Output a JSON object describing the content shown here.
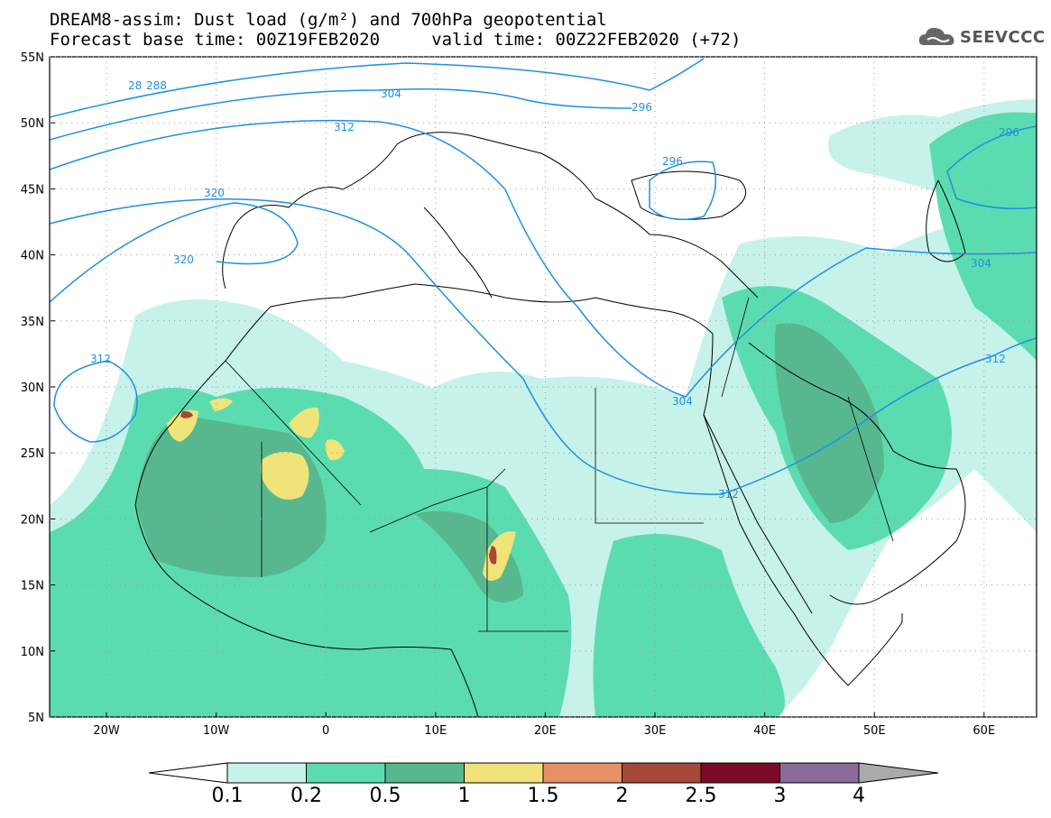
{
  "header": {
    "title_line1": "DREAM8-assim: Dust load (g/m²) and 700hPa geopotential",
    "title_line2": "Forecast base time: 00Z19FEB2020     valid time: 00Z22FEB2020 (+72)",
    "logo_text": "SEEVCCC"
  },
  "map": {
    "lat_labels": [
      "55N",
      "50N",
      "45N",
      "40N",
      "35N",
      "30N",
      "25N",
      "20N",
      "15N",
      "10N",
      "5N"
    ],
    "lon_labels": [
      "20W",
      "10W",
      "0",
      "10E",
      "20E",
      "30E",
      "40E",
      "50E",
      "60E"
    ],
    "contour_labels": [
      "28",
      "288",
      "296",
      "296",
      "296",
      "304",
      "304",
      "304",
      "312",
      "312",
      "312",
      "312",
      "312",
      "320",
      "320"
    ]
  },
  "colorbar": {
    "labels": [
      "0.1",
      "0.2",
      "0.5",
      "1",
      "1.5",
      "2",
      "2.5",
      "3",
      "4"
    ],
    "colors": [
      "#c6f2ea",
      "#5bdcb0",
      "#57b890",
      "#f0e37a",
      "#e89068",
      "#a84838",
      "#7a0a28",
      "#8a6a9a"
    ],
    "left_arrow_color": "#ffffff",
    "right_arrow_color": "#aaaaaa"
  },
  "colors": {
    "contour": "#1e90e0",
    "land": "#ffffff",
    "dust_light": "#c6f2ea",
    "dust_mid": "#5bdcb0",
    "dust_dark": "#57b890",
    "dust_high": "#f0e37a"
  }
}
